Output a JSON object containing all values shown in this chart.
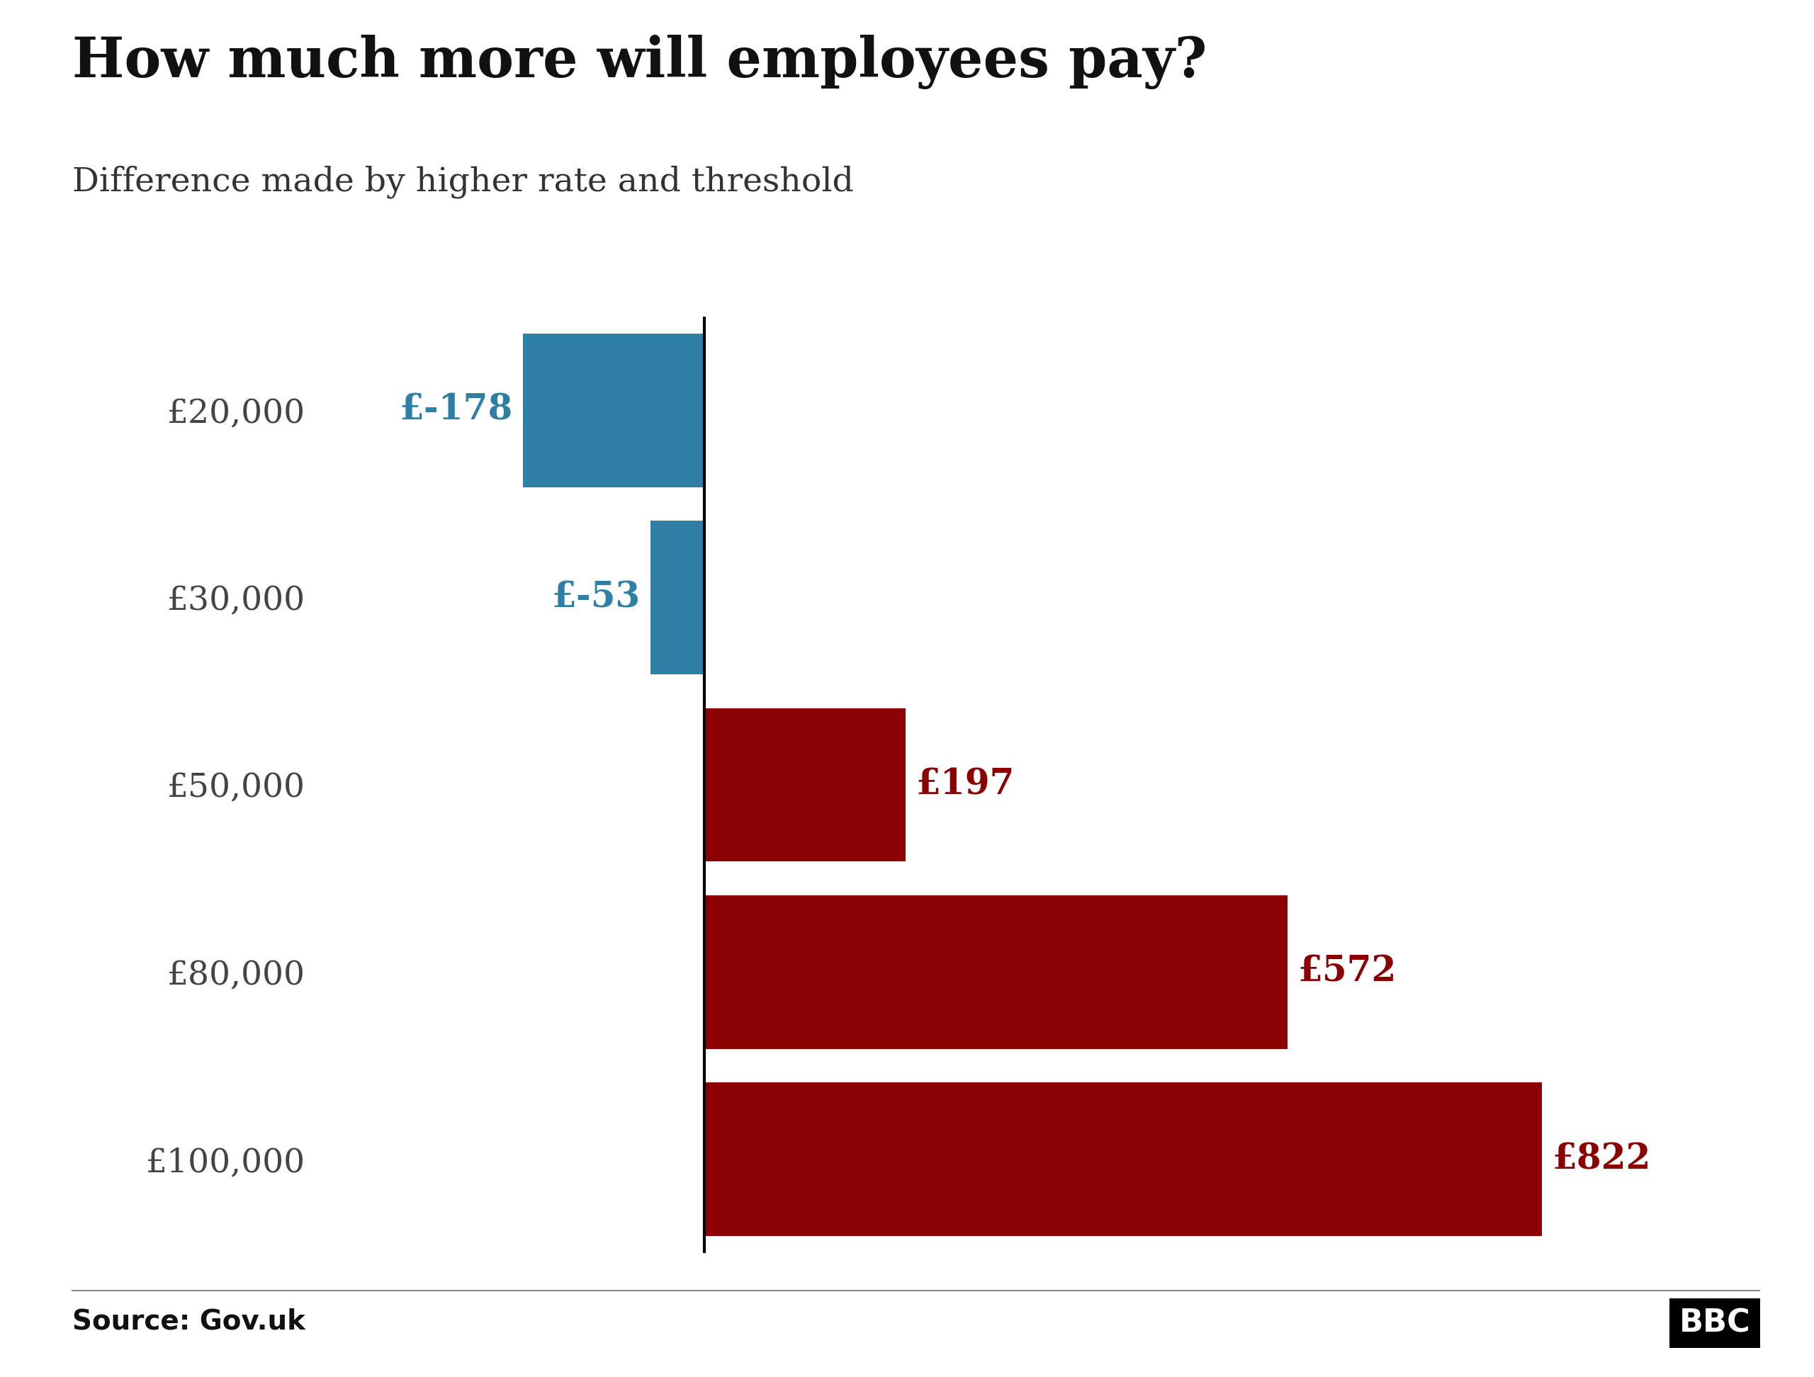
{
  "title": "How much more will employees pay?",
  "subtitle": "Difference made by higher rate and threshold",
  "source": "Source: Gov.uk",
  "categories": [
    "£20,000",
    "£30,000",
    "£50,000",
    "£80,000",
    "£100,000"
  ],
  "values": [
    -178,
    -53,
    197,
    572,
    822
  ],
  "bar_colors": [
    "#2d7fa6",
    "#2d7fa6",
    "#8b0000",
    "#8b0000",
    "#8b0000"
  ],
  "label_colors": [
    "#2d7fa6",
    "#2d7fa6",
    "#8b0000",
    "#8b0000",
    "#8b0000"
  ],
  "labels": [
    "£-178",
    "£-53",
    "£197",
    "£572",
    "£822"
  ],
  "background_color": "#ffffff",
  "title_fontsize": 56,
  "subtitle_fontsize": 34,
  "label_fontsize": 36,
  "tick_fontsize": 34,
  "source_fontsize": 28,
  "xlim": [
    -380,
    1000
  ],
  "bar_height": 0.82
}
